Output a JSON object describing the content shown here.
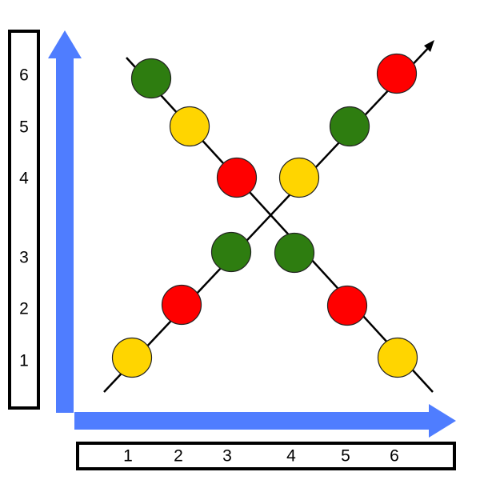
{
  "colors": {
    "arrow": "#4f7dff",
    "line": "#000000",
    "green": "#2e7d10",
    "yellow": "#ffd500",
    "red": "#ff0000",
    "outline": "#222222"
  },
  "y_axis": {
    "labels": [
      "1",
      "2",
      "3",
      "4",
      "5",
      "6"
    ]
  },
  "x_axis": {
    "labels": [
      "1",
      "2",
      "3",
      "4",
      "5",
      "6"
    ]
  },
  "lines": [
    {
      "name": "descending-line",
      "beads": [
        {
          "label": "6",
          "color": "green"
        },
        {
          "label": "5",
          "color": "yellow"
        },
        {
          "label": "4",
          "color": "red"
        },
        {
          "label": "3",
          "color": "green"
        },
        {
          "label": "2",
          "color": "red"
        },
        {
          "label": "1",
          "color": "yellow"
        }
      ]
    },
    {
      "name": "ascending-line",
      "beads": [
        {
          "label": "1",
          "color": "yellow"
        },
        {
          "label": "2",
          "color": "red"
        },
        {
          "label": "3",
          "color": "green"
        },
        {
          "label": "4",
          "color": "yellow"
        },
        {
          "label": "5",
          "color": "green"
        },
        {
          "label": "6",
          "color": "red"
        }
      ]
    }
  ]
}
